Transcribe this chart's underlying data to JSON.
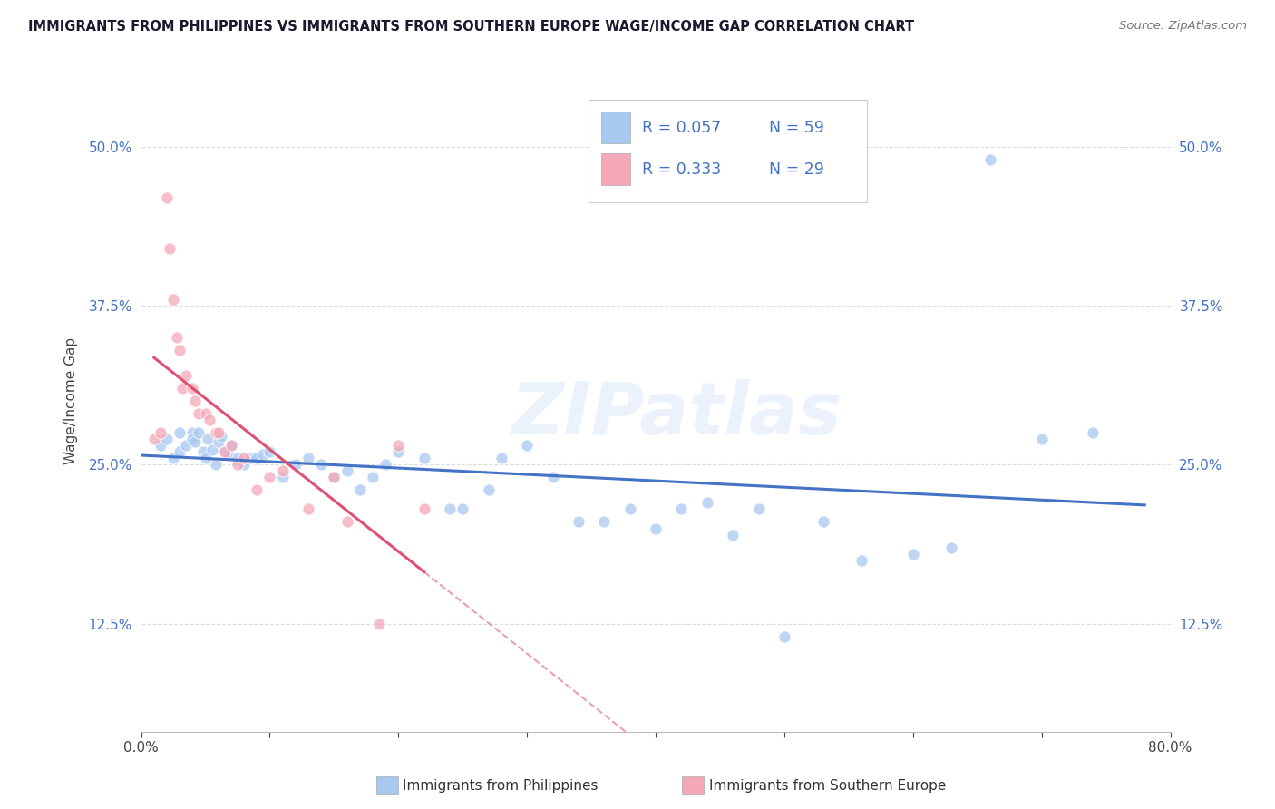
{
  "title": "IMMIGRANTS FROM PHILIPPINES VS IMMIGRANTS FROM SOUTHERN EUROPE WAGE/INCOME GAP CORRELATION CHART",
  "source_text": "Source: ZipAtlas.com",
  "ylabel_text": "Wage/Income Gap",
  "legend_label_blue": "Immigrants from Philippines",
  "legend_label_pink": "Immigrants from Southern Europe",
  "R_blue": 0.057,
  "N_blue": 59,
  "R_pink": 0.333,
  "N_pink": 29,
  "xlim": [
    0.0,
    0.8
  ],
  "ylim": [
    0.04,
    0.56
  ],
  "yticks": [
    0.125,
    0.25,
    0.375,
    0.5
  ],
  "ytick_labels": [
    "12.5%",
    "25.0%",
    "37.5%",
    "50.0%"
  ],
  "xticks": [
    0.0,
    0.1,
    0.2,
    0.3,
    0.4,
    0.5,
    0.6,
    0.7,
    0.8
  ],
  "xtick_labels": [
    "0.0%",
    "",
    "",
    "",
    "",
    "",
    "",
    "",
    "80.0%"
  ],
  "color_blue": "#A8C8F0",
  "color_pink": "#F4A8B8",
  "line_color_blue": "#4472C4",
  "line_color_pink": "#E05070",
  "line_color_pink_dash": "#E8A0B0",
  "watermark": "ZIPatlas",
  "blue_points_x": [
    0.015,
    0.02,
    0.025,
    0.03,
    0.03,
    0.035,
    0.04,
    0.04,
    0.042,
    0.045,
    0.048,
    0.05,
    0.052,
    0.055,
    0.058,
    0.06,
    0.062,
    0.065,
    0.068,
    0.07,
    0.075,
    0.08,
    0.085,
    0.09,
    0.095,
    0.1,
    0.11,
    0.12,
    0.13,
    0.14,
    0.15,
    0.16,
    0.17,
    0.18,
    0.19,
    0.2,
    0.22,
    0.24,
    0.25,
    0.27,
    0.28,
    0.3,
    0.32,
    0.34,
    0.36,
    0.38,
    0.4,
    0.42,
    0.44,
    0.46,
    0.48,
    0.5,
    0.53,
    0.56,
    0.6,
    0.63,
    0.66,
    0.7,
    0.74
  ],
  "blue_points_y": [
    0.265,
    0.27,
    0.255,
    0.26,
    0.275,
    0.265,
    0.275,
    0.27,
    0.268,
    0.275,
    0.26,
    0.255,
    0.27,
    0.262,
    0.25,
    0.268,
    0.272,
    0.26,
    0.258,
    0.265,
    0.255,
    0.25,
    0.255,
    0.255,
    0.258,
    0.26,
    0.24,
    0.25,
    0.255,
    0.25,
    0.24,
    0.245,
    0.23,
    0.24,
    0.25,
    0.26,
    0.255,
    0.215,
    0.215,
    0.23,
    0.255,
    0.265,
    0.24,
    0.205,
    0.205,
    0.215,
    0.2,
    0.215,
    0.22,
    0.195,
    0.215,
    0.115,
    0.205,
    0.175,
    0.18,
    0.185,
    0.49,
    0.27,
    0.275
  ],
  "pink_points_x": [
    0.01,
    0.015,
    0.02,
    0.022,
    0.025,
    0.028,
    0.03,
    0.032,
    0.035,
    0.04,
    0.042,
    0.045,
    0.05,
    0.053,
    0.058,
    0.06,
    0.065,
    0.07,
    0.075,
    0.08,
    0.09,
    0.1,
    0.11,
    0.13,
    0.15,
    0.16,
    0.185,
    0.2,
    0.22
  ],
  "pink_points_y": [
    0.27,
    0.275,
    0.46,
    0.42,
    0.38,
    0.35,
    0.34,
    0.31,
    0.32,
    0.31,
    0.3,
    0.29,
    0.29,
    0.285,
    0.275,
    0.275,
    0.26,
    0.265,
    0.25,
    0.255,
    0.23,
    0.24,
    0.245,
    0.215,
    0.24,
    0.205,
    0.125,
    0.265,
    0.215
  ]
}
